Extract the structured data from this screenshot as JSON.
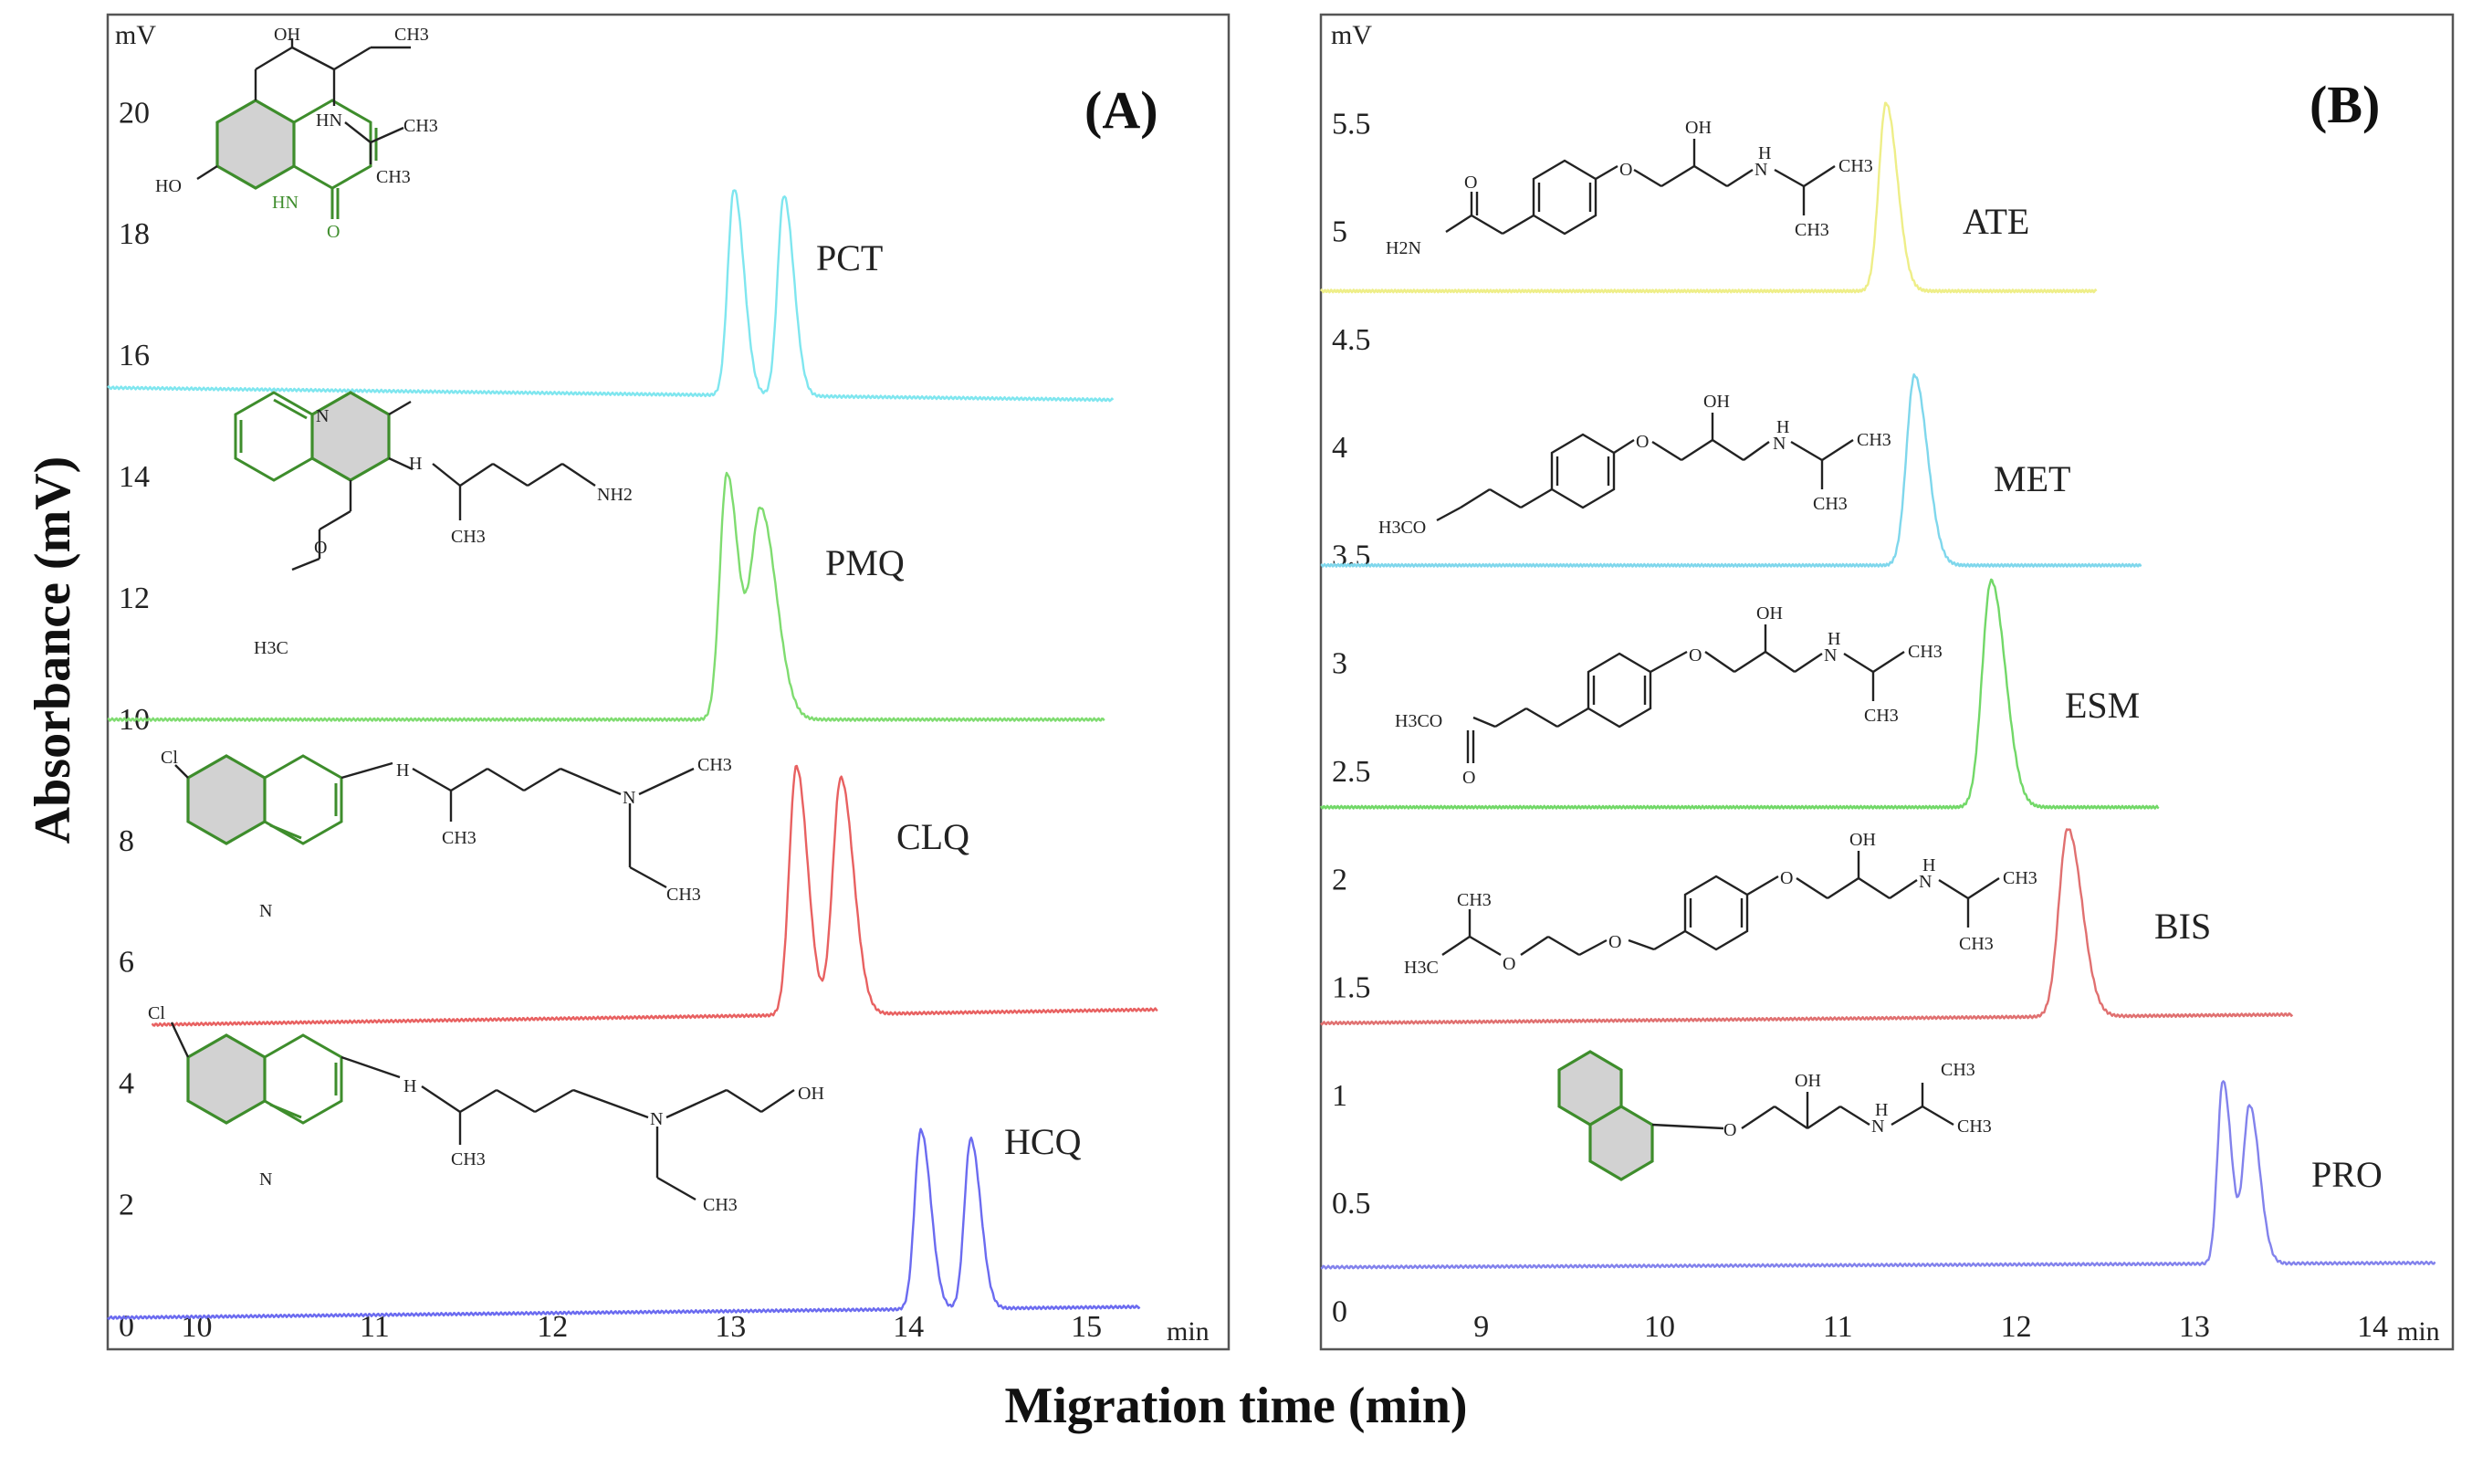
{
  "figure": {
    "x_axis_title": "Migration time (min)",
    "y_axis_title": "Absorbance (mV)",
    "min_unit": "min",
    "mv_unit": "mV"
  },
  "chart_data": [
    {
      "type": "line",
      "panel_label": "(A)",
      "xlim": [
        9.5,
        15.8
      ],
      "ylim": [
        -0.4,
        21.6
      ],
      "x_ticks": [
        10,
        11,
        12,
        13,
        14,
        15
      ],
      "y_ticks": [
        0,
        2,
        4,
        6,
        8,
        10,
        12,
        14,
        16,
        18,
        20
      ],
      "x_unit": "min",
      "y_unit": "mV",
      "series": [
        {
          "name": "PCT",
          "color": "#7fe6ef",
          "x_start": 9.5,
          "x_end": 15.15,
          "baseline_start": 15.45,
          "baseline_end": 15.25,
          "peaks": [
            {
              "x": 13.02,
              "height": 3.4,
              "sigma": 0.035
            },
            {
              "x": 13.3,
              "height": 3.3,
              "sigma": 0.035
            }
          ],
          "structure": {
            "type": "structure-pct",
            "labels": [
              "OH",
              "CH3",
              "HO",
              "HN",
              "CH3",
              "CH3",
              "HN",
              "O"
            ]
          }
        },
        {
          "name": "PMQ",
          "color": "#7fdc70",
          "x_start": 9.5,
          "x_end": 15.1,
          "baseline_start": 9.98,
          "baseline_end": 9.98,
          "peaks": [
            {
              "x": 12.98,
              "height": 4.05,
              "sigma": 0.04
            },
            {
              "x": 13.17,
              "height": 3.45,
              "sigma": 0.055
            }
          ],
          "structure": {
            "type": "structure-pmq",
            "labels": [
              "N",
              "H",
              "NH2",
              "CH3",
              "O",
              "H3C"
            ]
          }
        },
        {
          "name": "CLQ",
          "color": "#e86161",
          "x_start": 9.75,
          "x_end": 15.4,
          "baseline_start": 4.95,
          "baseline_end": 5.2,
          "peaks": [
            {
              "x": 13.37,
              "height": 4.1,
              "sigma": 0.04
            },
            {
              "x": 13.62,
              "height": 3.9,
              "sigma": 0.045
            }
          ],
          "structure": {
            "type": "structure-clq",
            "labels": [
              "Cl",
              "N",
              "H",
              "CH3",
              "N",
              "CH3",
              "CH3"
            ]
          }
        },
        {
          "name": "HCQ",
          "color": "#6b6bf0",
          "x_start": 9.5,
          "x_end": 15.3,
          "baseline_start": 0.12,
          "baseline_end": 0.3,
          "peaks": [
            {
              "x": 14.07,
              "height": 2.95,
              "sigma": 0.035
            },
            {
              "x": 14.35,
              "height": 2.8,
              "sigma": 0.035
            }
          ],
          "structure": {
            "type": "structure-hcq",
            "labels": [
              "Cl",
              "N",
              "H",
              "CH3",
              "N",
              "OH",
              "CH3"
            ]
          }
        }
      ]
    },
    {
      "type": "line",
      "panel_label": "(B)",
      "xlim": [
        8.1,
        14.45
      ],
      "ylim": [
        -0.18,
        6.0
      ],
      "x_ticks": [
        9,
        10,
        11,
        12,
        13,
        14
      ],
      "y_ticks": [
        0,
        0.5,
        1,
        1.5,
        2,
        2.5,
        3,
        3.5,
        4,
        4.5,
        5,
        5.5
      ],
      "x_unit": "min",
      "y_unit": "mV",
      "series": [
        {
          "name": "ATE",
          "color": "#eeee88",
          "x_start": 8.1,
          "x_end": 12.45,
          "baseline_start": 4.72,
          "baseline_end": 4.72,
          "peaks": [
            {
              "x": 11.27,
              "height": 0.87,
              "sigma": 0.04
            }
          ],
          "structure": {
            "type": "structure-ate",
            "labels": [
              "O",
              "OH",
              "N",
              "H",
              "CH3",
              "CH3",
              "O",
              "H2N"
            ]
          }
        },
        {
          "name": "MET",
          "color": "#7fd7ec",
          "x_start": 8.1,
          "x_end": 12.7,
          "baseline_start": 3.45,
          "baseline_end": 3.45,
          "peaks": [
            {
              "x": 11.43,
              "height": 0.88,
              "sigma": 0.045
            }
          ],
          "structure": {
            "type": "structure-met",
            "labels": [
              "O",
              "OH",
              "N",
              "H",
              "CH3",
              "CH3",
              "H3CO"
            ]
          }
        },
        {
          "name": "ESM",
          "color": "#72d868",
          "x_start": 8.1,
          "x_end": 12.8,
          "baseline_start": 2.33,
          "baseline_end": 2.33,
          "peaks": [
            {
              "x": 11.86,
              "height": 1.05,
              "sigma": 0.05
            }
          ],
          "structure": {
            "type": "structure-esm",
            "labels": [
              "O",
              "OH",
              "N",
              "H",
              "CH3",
              "CH3",
              "H3CO",
              "O"
            ]
          }
        },
        {
          "name": "BIS",
          "color": "#e07070",
          "x_start": 8.1,
          "x_end": 13.55,
          "baseline_start": 1.33,
          "baseline_end": 1.37,
          "peaks": [
            {
              "x": 12.29,
              "height": 0.87,
              "sigma": 0.05
            }
          ],
          "structure": {
            "type": "structure-bis",
            "labels": [
              "CH3",
              "H3C",
              "O",
              "O",
              "O",
              "OH",
              "N",
              "H",
              "CH3",
              "CH3"
            ]
          }
        },
        {
          "name": "PRO",
          "color": "#8282ec",
          "x_start": 8.1,
          "x_end": 14.35,
          "baseline_start": 0.2,
          "baseline_end": 0.22,
          "peaks": [
            {
              "x": 13.16,
              "height": 0.85,
              "sigma": 0.03
            },
            {
              "x": 13.31,
              "height": 0.73,
              "sigma": 0.035
            }
          ],
          "structure": {
            "type": "structure-pro",
            "labels": [
              "OH",
              "O",
              "N",
              "H",
              "CH3",
              "CH3"
            ]
          }
        }
      ]
    }
  ]
}
